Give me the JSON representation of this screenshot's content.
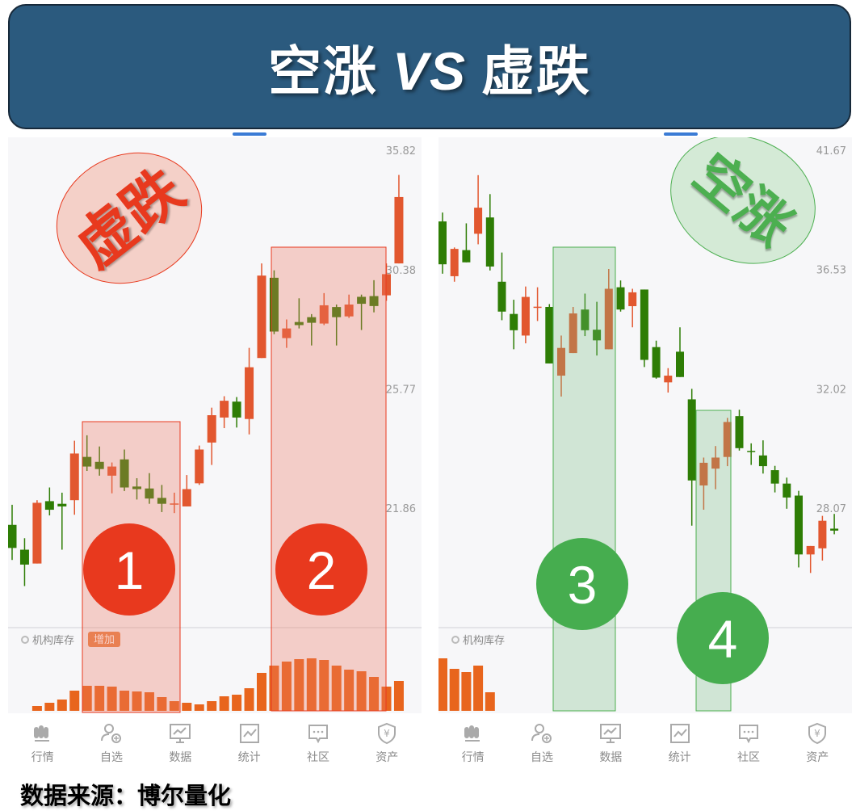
{
  "header": {
    "title_left": "空涨",
    "title_vs": "VS",
    "title_right": "虚跌"
  },
  "colors": {
    "up": "#e2572f",
    "down": "#2e7d05",
    "volume": "#e8651d",
    "red_accent": "#e8391e",
    "green_accent": "#46ad4f",
    "header_bg": "#2b5a7e"
  },
  "charts": [
    {
      "stamp": "虚跌",
      "price_ticks": [
        35.82,
        30.38,
        25.77,
        21.86
      ],
      "inventory_label": "机构库存",
      "inventory_badge": "增加",
      "markers": [
        "1",
        "2"
      ],
      "candles": [
        [
          21.36,
          21.96,
          20.35,
          20.69
        ],
        [
          20.64,
          20.97,
          19.63,
          20.22
        ],
        [
          20.25,
          22.1,
          20.25,
          22.02
        ],
        [
          22.07,
          22.49,
          21.64,
          21.81
        ],
        [
          21.99,
          22.33,
          20.64,
          21.91
        ],
        [
          22.1,
          23.99,
          21.66,
          23.57
        ],
        [
          23.46,
          24.17,
          23.01,
          23.15
        ],
        [
          23.3,
          23.8,
          22.86,
          23.07
        ],
        [
          22.86,
          23.28,
          22.31,
          23.15
        ],
        [
          23.38,
          23.7,
          22.38,
          22.49
        ],
        [
          22.52,
          22.78,
          22.12,
          22.44
        ],
        [
          22.46,
          22.94,
          21.99,
          22.15
        ],
        [
          22.17,
          22.57,
          21.74,
          21.99
        ],
        [
          21.99,
          22.33,
          21.71,
          22.0
        ],
        [
          21.91,
          22.88,
          21.91,
          22.44
        ],
        [
          22.62,
          23.83,
          22.57,
          23.7
        ],
        [
          23.93,
          25.11,
          23.2,
          24.85
        ],
        [
          24.77,
          25.51,
          24.41,
          25.35
        ],
        [
          25.32,
          25.48,
          24.43,
          24.77
        ],
        [
          24.72,
          27.27,
          24.2,
          26.55
        ],
        [
          26.89,
          30.64,
          26.89,
          30.13
        ],
        [
          30.04,
          30.35,
          27.79,
          27.89
        ],
        [
          27.64,
          28.36,
          27.27,
          28.01
        ],
        [
          28.26,
          29.2,
          28.01,
          28.14
        ],
        [
          28.45,
          28.57,
          27.36,
          28.23
        ],
        [
          28.2,
          29.41,
          28.14,
          28.92
        ],
        [
          28.85,
          28.95,
          27.36,
          28.45
        ],
        [
          28.48,
          29.35,
          28.42,
          28.95
        ],
        [
          29.26,
          29.35,
          27.95,
          28.98
        ],
        [
          29.29,
          29.94,
          28.64,
          28.89
        ],
        [
          29.32,
          30.64,
          29.1,
          30.19
        ],
        [
          30.64,
          34.62,
          30.64,
          33.58
        ]
      ],
      "inventory": [
        null,
        null,
        6,
        10,
        14,
        25,
        31,
        31,
        30,
        25,
        24,
        23,
        17,
        12,
        10,
        8,
        12,
        18,
        20,
        28,
        47,
        56,
        61,
        64,
        65,
        63,
        56,
        51,
        49,
        42,
        30,
        37
      ],
      "highlight_ranges": [
        [
          6,
          13
        ],
        [
          21,
          30
        ]
      ]
    },
    {
      "stamp": "空涨",
      "price_ticks": [
        41.67,
        36.53,
        32.02,
        28.07
      ],
      "inventory_label": "机构库存",
      "markers": [
        "3",
        "4"
      ],
      "candles": [
        [
          38.52,
          38.9,
          36.36,
          36.74
        ],
        [
          36.26,
          37.43,
          36.04,
          37.37
        ],
        [
          37.32,
          38.44,
          36.82,
          36.82
        ],
        [
          38.0,
          40.54,
          37.56,
          39.11
        ],
        [
          38.69,
          39.7,
          36.49,
          36.65
        ],
        [
          36.04,
          37.22,
          34.54,
          34.87
        ],
        [
          34.78,
          35.33,
          33.45,
          34.16
        ],
        [
          33.96,
          35.85,
          33.67,
          35.44
        ],
        [
          35.05,
          35.82,
          34.51,
          35.06
        ],
        [
          35.05,
          35.16,
          32.93,
          32.93
        ],
        [
          32.49,
          33.96,
          31.75,
          33.5
        ],
        [
          33.31,
          35.05,
          33.31,
          34.8
        ],
        [
          34.95,
          35.57,
          33.94,
          34.16
        ],
        [
          34.18,
          35.25,
          33.22,
          33.78
        ],
        [
          33.45,
          36.55,
          33.45,
          35.76
        ],
        [
          35.82,
          36.09,
          34.87,
          34.95
        ],
        [
          35.08,
          35.76,
          34.27,
          35.62
        ],
        [
          35.73,
          35.73,
          32.8,
          33.06
        ],
        [
          33.53,
          33.77,
          32.38,
          32.42
        ],
        [
          32.25,
          32.76,
          31.89,
          32.49
        ],
        [
          33.36,
          34.27,
          32.44,
          32.44
        ],
        [
          31.65,
          32.02,
          27.53,
          28.94
        ],
        [
          28.78,
          29.68,
          28.02,
          29.51
        ],
        [
          29.32,
          30.06,
          28.66,
          29.68
        ],
        [
          29.7,
          31.01,
          29.4,
          30.87
        ],
        [
          31.07,
          31.29,
          29.91,
          29.99
        ],
        [
          29.9,
          30.15,
          29.44,
          29.86
        ],
        [
          29.75,
          30.25,
          29.16,
          29.4
        ],
        [
          29.27,
          29.41,
          28.56,
          28.84
        ],
        [
          28.84,
          29.03,
          28.05,
          28.4
        ],
        [
          28.46,
          28.61,
          26.29,
          26.67
        ],
        [
          26.67,
          26.92,
          26.13,
          26.92
        ],
        [
          26.85,
          27.83,
          26.49,
          27.68
        ],
        [
          27.44,
          27.89,
          27.27,
          27.38
        ]
      ],
      "inventory": [
        65,
        52,
        48,
        56,
        23,
        null,
        null,
        null,
        null,
        null,
        null,
        null,
        null,
        null,
        null,
        null,
        null,
        null,
        null,
        null,
        null,
        null,
        null,
        null,
        null,
        null,
        null,
        null,
        null,
        null,
        null,
        null,
        null,
        null
      ],
      "highlight_ranges": [
        [
          9,
          14
        ],
        [
          22,
          24
        ]
      ]
    }
  ],
  "nav": [
    {
      "label": "行情",
      "icon": "bars-icon"
    },
    {
      "label": "自选",
      "icon": "user-add-icon"
    },
    {
      "label": "数据",
      "icon": "monitor-chart-icon"
    },
    {
      "label": "统计",
      "icon": "line-chart-icon"
    },
    {
      "label": "社区",
      "icon": "chat-icon"
    },
    {
      "label": "资产",
      "icon": "shield-yen-icon"
    }
  ],
  "footer": "数据来源：博尔量化"
}
